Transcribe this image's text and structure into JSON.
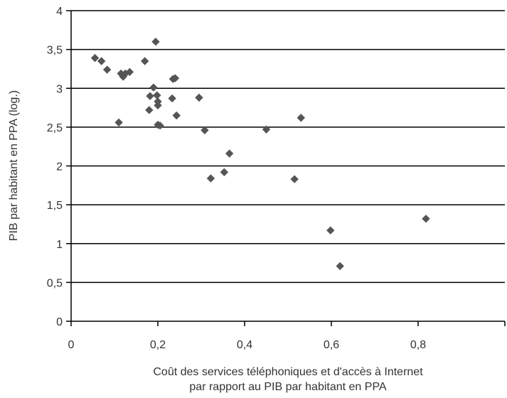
{
  "chart_data": {
    "type": "scatter",
    "title": "",
    "xlabel_lines": [
      "Coût des services téléphoniques et d'accès à Internet",
      "par rapport au PIB par habitant en PPA"
    ],
    "ylabel": "PIB par habitant en PPA (log.)",
    "xlim": [
      0,
      1
    ],
    "ylim": [
      0,
      4
    ],
    "x_ticks": [
      0,
      0.2,
      0.4,
      0.6,
      0.8,
      1
    ],
    "y_ticks": [
      0,
      0.5,
      1,
      1.5,
      2,
      2.5,
      3,
      3.5,
      4
    ],
    "x_tick_labels": [
      "0",
      "0,2",
      "0,4",
      "0,6",
      "0,8",
      ""
    ],
    "y_tick_labels": [
      "0",
      "0,5",
      "1",
      "1,5",
      "2",
      "2,5",
      "3",
      "3,5",
      "4"
    ],
    "grid": {
      "horizontal": true,
      "vertical": false
    },
    "legend": "none",
    "marker_color": "#555555",
    "series": [
      {
        "points": [
          {
            "x": 0.055,
            "y": 3.39
          },
          {
            "x": 0.07,
            "y": 3.35
          },
          {
            "x": 0.083,
            "y": 3.24
          },
          {
            "x": 0.11,
            "y": 2.56
          },
          {
            "x": 0.115,
            "y": 3.19
          },
          {
            "x": 0.12,
            "y": 3.15
          },
          {
            "x": 0.125,
            "y": 3.19
          },
          {
            "x": 0.135,
            "y": 3.21
          },
          {
            "x": 0.17,
            "y": 3.35
          },
          {
            "x": 0.18,
            "y": 2.72
          },
          {
            "x": 0.182,
            "y": 2.9
          },
          {
            "x": 0.19,
            "y": 3.01
          },
          {
            "x": 0.195,
            "y": 3.6
          },
          {
            "x": 0.198,
            "y": 2.91
          },
          {
            "x": 0.2,
            "y": 2.78
          },
          {
            "x": 0.2,
            "y": 2.83
          },
          {
            "x": 0.2,
            "y": 2.53
          },
          {
            "x": 0.205,
            "y": 2.52
          },
          {
            "x": 0.233,
            "y": 2.87
          },
          {
            "x": 0.235,
            "y": 3.12
          },
          {
            "x": 0.24,
            "y": 3.13
          },
          {
            "x": 0.243,
            "y": 2.65
          },
          {
            "x": 0.295,
            "y": 2.88
          },
          {
            "x": 0.308,
            "y": 2.46
          },
          {
            "x": 0.322,
            "y": 1.84
          },
          {
            "x": 0.353,
            "y": 1.92
          },
          {
            "x": 0.365,
            "y": 2.16
          },
          {
            "x": 0.45,
            "y": 2.47
          },
          {
            "x": 0.515,
            "y": 1.83
          },
          {
            "x": 0.53,
            "y": 2.62
          },
          {
            "x": 0.598,
            "y": 1.17
          },
          {
            "x": 0.62,
            "y": 0.71
          },
          {
            "x": 0.818,
            "y": 1.32
          }
        ]
      }
    ]
  }
}
